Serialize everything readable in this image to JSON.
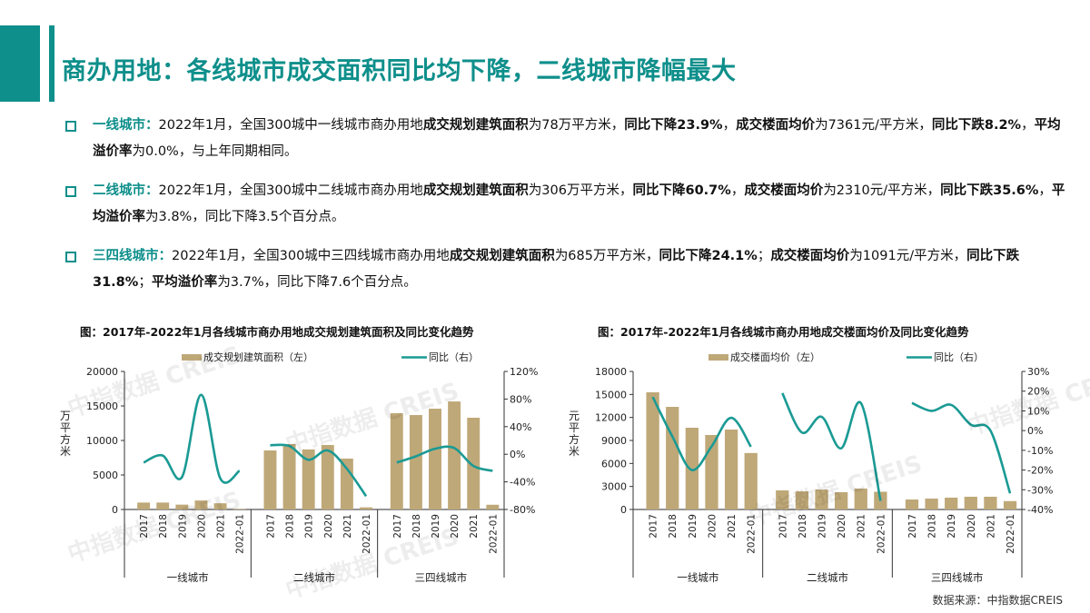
{
  "header": {
    "title": "商办用地：各线城市成交面积同比均下降，二线城市降幅最大"
  },
  "bullets": [
    {
      "label": "一线城市：",
      "parts": [
        {
          "t": "2022年1月，全国300城中一线城市商办用地",
          "b": false
        },
        {
          "t": "成交规划建筑面积",
          "b": true
        },
        {
          "t": "为78万平方米，",
          "b": false
        },
        {
          "t": "同比下降23.9%",
          "b": true
        },
        {
          "t": "，",
          "b": false
        },
        {
          "t": "成交楼面均价",
          "b": true
        },
        {
          "t": "为7361元/平方米，",
          "b": false
        },
        {
          "t": "同比下跌8.2%",
          "b": true
        },
        {
          "t": "，",
          "b": false
        },
        {
          "t": "平均溢价率",
          "b": true
        },
        {
          "t": "为0.0%，与上年同期相同。",
          "b": false
        }
      ]
    },
    {
      "label": "二线城市：",
      "parts": [
        {
          "t": "2022年1月，全国300城中二线城市商办用地",
          "b": false
        },
        {
          "t": "成交规划建筑面积",
          "b": true
        },
        {
          "t": "为306万平方米，",
          "b": false
        },
        {
          "t": "同比下降60.7%",
          "b": true
        },
        {
          "t": "，",
          "b": false
        },
        {
          "t": "成交楼面均价",
          "b": true
        },
        {
          "t": "为2310元/平方米，",
          "b": false
        },
        {
          "t": "同比下跌35.6%",
          "b": true
        },
        {
          "t": "，",
          "b": false
        },
        {
          "t": "平均溢价率",
          "b": true
        },
        {
          "t": "为3.8%，同比下降3.5个百分点。",
          "b": false
        }
      ]
    },
    {
      "label": "三四线城市：",
      "parts": [
        {
          "t": "2022年1月，全国300城中三四线城市商办用地",
          "b": false
        },
        {
          "t": "成交规划建筑面积",
          "b": true
        },
        {
          "t": "为685万平方米，",
          "b": false
        },
        {
          "t": "同比下降24.1%",
          "b": true
        },
        {
          "t": "；",
          "b": false
        },
        {
          "t": "成交楼面均价",
          "b": true
        },
        {
          "t": "为1091元/平方米，",
          "b": false
        },
        {
          "t": "同比下跌31.8%",
          "b": true
        },
        {
          "t": "；",
          "b": false
        },
        {
          "t": "平均溢价率",
          "b": true
        },
        {
          "t": "为3.7%，同比下降7.6个百分点。",
          "b": false
        }
      ]
    }
  ],
  "source": "数据来源：中指数据CREIS",
  "watermark": "中指数据 CREIS",
  "colors": {
    "accent": "#0e8f8b",
    "bar": "#bfa878",
    "line": "#1a9a94",
    "axis": "#333333"
  },
  "chart_data": [
    {
      "type": "bar+line",
      "title": "图：2017年-2022年1月各线城市商办用地成交规划建筑面积及同比变化趋势",
      "legend": [
        "成交规划建筑面积（左）",
        "同比（右）"
      ],
      "ylabel": "万平方米",
      "ylim": [
        0,
        20000
      ],
      "yticks": [
        0,
        5000,
        10000,
        15000,
        20000
      ],
      "y2lim": [
        -80,
        120
      ],
      "y2ticks": [
        "-80%",
        "-40%",
        "0%",
        "40%",
        "80%",
        "120%"
      ],
      "groups": [
        "一线城市",
        "二线城市",
        "三四线城市"
      ],
      "categories": [
        "2017",
        "2018",
        "2019",
        "2020",
        "2021",
        "2022-01"
      ],
      "series": [
        {
          "name": "成交规划建筑面积（左）",
          "kind": "bar",
          "values": [
            [
              1000,
              1000,
              700,
              1300,
              900,
              78
            ],
            [
              8550,
              9470,
              8700,
              9340,
              7370,
              306
            ],
            [
              13950,
              13680,
              14600,
              15650,
              13290,
              685
            ]
          ]
        },
        {
          "name": "同比（右）",
          "kind": "line",
          "values": [
            [
              -12,
              -2,
              -33,
              86,
              -35,
              -23.9
            ],
            [
              13,
              12,
              -8,
              5.5,
              -21,
              -60.7
            ],
            [
              -12,
              -3,
              8,
              9,
              -17,
              -24.1
            ]
          ]
        }
      ]
    },
    {
      "type": "bar+line",
      "title": "图：2017年-2022年1月各线城市商办用地成交楼面均价及同比变化趋势",
      "legend": [
        "成交楼面均价（左）",
        "同比（右）"
      ],
      "ylabel": "元/平方米",
      "ylim": [
        0,
        18000
      ],
      "yticks": [
        0,
        3000,
        6000,
        9000,
        12000,
        15000,
        18000
      ],
      "y2lim": [
        -40,
        30
      ],
      "y2ticks": [
        "-40%",
        "-30%",
        "-20%",
        "-10%",
        "0%",
        "10%",
        "20%",
        "30%"
      ],
      "groups": [
        "一线城市",
        "二线城市",
        "三四线城市"
      ],
      "categories": [
        "2017",
        "2018",
        "2019",
        "2020",
        "2021",
        "2022-01"
      ],
      "series": [
        {
          "name": "成交楼面均价（左）",
          "kind": "bar",
          "values": [
            [
              15280,
              13380,
              10660,
              9710,
              10420,
              7361
            ],
            [
              2490,
              2370,
              2600,
              2250,
              2720,
              2310
            ],
            [
              1300,
              1420,
              1540,
              1660,
              1660,
              1091
            ]
          ]
        },
        {
          "name": "同比（右）",
          "kind": "line",
          "values": [
            [
              17,
              -3,
              -20,
              -8,
              6.5,
              -8.2
            ],
            [
              19,
              -1,
              7,
              -9,
              14,
              -35.6
            ],
            [
              14,
              10,
              13,
              3,
              0,
              -31.8
            ]
          ]
        }
      ]
    }
  ]
}
